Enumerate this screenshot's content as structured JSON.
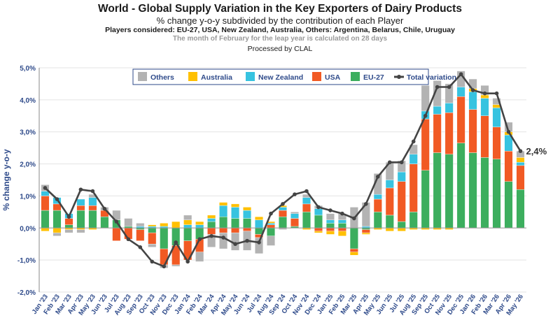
{
  "header": {
    "title": "World - Global Supply Variation in the Key Exporters of Dairy Products",
    "subtitle": "% change y-o-y subdivided by the contribution of each Player",
    "players": "Players considered: EU-27, USA, New Zealand, Australia, Others: Argentina, Belarus, Chile, Uruguay",
    "note": "The month of February for the leap year is calculated on 28 days",
    "processed": "Processed by CLAL"
  },
  "chart_data": {
    "type": "bar",
    "stacked": true,
    "ylabel": "% change y-o-y",
    "ylim": [
      -2,
      5
    ],
    "yticks": [
      "-2,0%",
      "-1,0%",
      "0,0%",
      "1,0%",
      "2,0%",
      "3,0%",
      "4,0%",
      "5,0%"
    ],
    "grid": "horizontal",
    "legend_position": "top",
    "categories": [
      "Jan '23",
      "Feb '23",
      "Mar '23",
      "Apr '23",
      "May '23",
      "Jun '23",
      "Jul '23",
      "Aug '23",
      "Sep '23",
      "Oct '23",
      "Nov '23",
      "Dec '23",
      "Jan '24",
      "Feb '24",
      "Mar '24",
      "Apr '24",
      "May '24",
      "Jun '24",
      "Jul '24",
      "Aug '24",
      "Sep '24",
      "Oct '24",
      "Nov '24",
      "Dec '24",
      "Jan '25",
      "Feb '25",
      "Mar '25",
      "Apr '25",
      "May '25",
      "Jun '25",
      "Jul '25",
      "Aug '25",
      "Sep '25",
      "Oct '25",
      "Nov '25",
      "Dec '25",
      "Jan '26",
      "Feb '26",
      "Mar '26",
      "Apr '26",
      "May '26"
    ],
    "series": [
      {
        "name": "Others",
        "color": "#b3b3b3",
        "values": [
          0.2,
          -0.1,
          -0.1,
          -0.1,
          0.1,
          0.1,
          0.3,
          0.25,
          0.1,
          -0.1,
          -0.1,
          -0.05,
          0.15,
          -0.3,
          -0.4,
          -0.5,
          -0.55,
          -0.6,
          -0.5,
          -0.3,
          -0.05,
          0.05,
          0.1,
          0.1,
          0.2,
          0.2,
          0.65,
          0.75,
          0.65,
          0.55,
          0.35,
          0.3,
          0.8,
          0.8,
          0.6,
          0.5,
          0.3,
          0.3,
          0.2,
          0.3,
          0.2
        ]
      },
      {
        "name": "Australia",
        "color": "#ffc000",
        "values": [
          -0.1,
          -0.15,
          -0.05,
          -0.05,
          -0.05,
          0,
          0,
          0,
          0,
          0.05,
          0.1,
          0.2,
          0.15,
          0.1,
          0.1,
          0.1,
          0.1,
          0.1,
          0.1,
          0.05,
          0.05,
          0,
          -0.05,
          -0.05,
          -0.1,
          -0.15,
          -0.1,
          -0.05,
          -0.05,
          -0.1,
          -0.1,
          -0.05,
          -0.05,
          -0.05,
          -0.05,
          0,
          0.1,
          0.1,
          0.1,
          0.1,
          0.15
        ]
      },
      {
        "name": "New Zealand",
        "color": "#37c3e0",
        "values": [
          0.15,
          0.2,
          0.15,
          0.2,
          0.25,
          0,
          0,
          0,
          0.05,
          0.05,
          0.05,
          0,
          0.1,
          0.1,
          0.1,
          0.35,
          0.35,
          0.25,
          0.25,
          0.05,
          0.1,
          0.15,
          0.2,
          0.2,
          0.1,
          0.1,
          0,
          0.05,
          0.15,
          0.25,
          0.3,
          0.3,
          0.25,
          0.25,
          0.3,
          0.3,
          0.55,
          0.55,
          0.6,
          0.5,
          0.1
        ]
      },
      {
        "name": "USA",
        "color": "#f15a24",
        "values": [
          0.45,
          0.2,
          0.2,
          0.15,
          0.15,
          0.2,
          -0.4,
          -0.35,
          -0.35,
          -0.35,
          -0.5,
          -0.6,
          -0.6,
          -0.4,
          -0.2,
          -0.15,
          -0.15,
          -0.1,
          -0.1,
          0.1,
          0.2,
          0.25,
          0.25,
          -0.1,
          -0.1,
          -0.1,
          -0.1,
          -0.1,
          0.4,
          0.85,
          1.25,
          1.5,
          1.6,
          1.2,
          1.3,
          1.45,
          1.35,
          1.3,
          1.0,
          0.95,
          0.75
        ]
      },
      {
        "name": "EU-27",
        "color": "#3cae5e",
        "values": [
          0.55,
          0.55,
          0.1,
          0.55,
          0.55,
          0.35,
          0.25,
          0.05,
          -0.05,
          -0.15,
          -0.65,
          -0.55,
          -0.4,
          -0.35,
          0.2,
          0.35,
          0.3,
          0.3,
          -0.2,
          -0.25,
          0.35,
          0.05,
          0.5,
          0.4,
          0.15,
          0.15,
          -0.65,
          -0.05,
          0.5,
          0.4,
          0.2,
          0.5,
          1.8,
          2.35,
          2.3,
          2.65,
          2.35,
          2.2,
          2.15,
          1.45,
          1.2
        ]
      }
    ],
    "total_variation": {
      "name": "Total variation",
      "color": "#444444",
      "values": [
        1.25,
        0.9,
        0.35,
        1.2,
        1.15,
        0.6,
        0.2,
        -0.35,
        -0.6,
        -1.05,
        -1.2,
        -0.45,
        -1.05,
        -0.35,
        -0.25,
        -0.3,
        -0.5,
        -0.4,
        -0.45,
        0.45,
        0.75,
        1.05,
        1.15,
        0.65,
        0.55,
        0.45,
        0.3,
        0.75,
        1.6,
        2.05,
        2.05,
        2.7,
        3.5,
        4.4,
        4.4,
        4.8,
        4.3,
        4.2,
        4.2,
        3.0,
        2.4
      ]
    },
    "end_label": "2,4%"
  }
}
